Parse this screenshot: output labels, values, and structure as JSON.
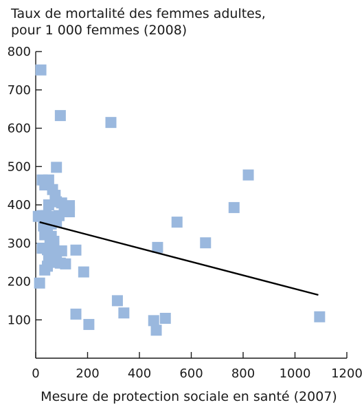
{
  "chart_data": {
    "type": "scatter",
    "title_lines": [
      "Taux de mortalité des femmes adultes,",
      "pour 1 000 femmes (2008)"
    ],
    "xlabel": "Mesure de protection sociale en santé (2007)",
    "ylabel": "",
    "xlim": [
      0,
      1200
    ],
    "ylim": [
      0,
      800
    ],
    "x_ticks": [
      0,
      200,
      400,
      600,
      800,
      1000,
      1200
    ],
    "y_ticks": [
      100,
      200,
      300,
      400,
      500,
      600,
      700,
      800
    ],
    "x_tick_labels": [
      "0",
      "200",
      "400",
      "600",
      "800",
      "1000",
      "1200"
    ],
    "y_tick_labels": [
      "100",
      "200",
      "300",
      "400",
      "500",
      "600",
      "700",
      "800"
    ],
    "grid": false,
    "colors": {
      "points": "#9ab8de",
      "trend_line": "#000000"
    },
    "points": [
      {
        "x": 20,
        "y": 752
      },
      {
        "x": 95,
        "y": 633
      },
      {
        "x": 290,
        "y": 615
      },
      {
        "x": 820,
        "y": 478
      },
      {
        "x": 765,
        "y": 393
      },
      {
        "x": 545,
        "y": 355
      },
      {
        "x": 655,
        "y": 301
      },
      {
        "x": 470,
        "y": 289
      },
      {
        "x": 1095,
        "y": 108
      },
      {
        "x": 500,
        "y": 104
      },
      {
        "x": 455,
        "y": 98
      },
      {
        "x": 465,
        "y": 73
      },
      {
        "x": 340,
        "y": 118
      },
      {
        "x": 315,
        "y": 150
      },
      {
        "x": 205,
        "y": 88
      },
      {
        "x": 155,
        "y": 115
      },
      {
        "x": 185,
        "y": 225
      },
      {
        "x": 155,
        "y": 282
      },
      {
        "x": 115,
        "y": 246
      },
      {
        "x": 95,
        "y": 248
      },
      {
        "x": 100,
        "y": 280
      },
      {
        "x": 80,
        "y": 498
      },
      {
        "x": 25,
        "y": 465
      },
      {
        "x": 50,
        "y": 465
      },
      {
        "x": 35,
        "y": 452
      },
      {
        "x": 65,
        "y": 440
      },
      {
        "x": 75,
        "y": 425
      },
      {
        "x": 80,
        "y": 408
      },
      {
        "x": 50,
        "y": 400
      },
      {
        "x": 100,
        "y": 405
      },
      {
        "x": 130,
        "y": 398
      },
      {
        "x": 130,
        "y": 382
      },
      {
        "x": 110,
        "y": 385
      },
      {
        "x": 90,
        "y": 372
      },
      {
        "x": 70,
        "y": 370
      },
      {
        "x": 55,
        "y": 368
      },
      {
        "x": 40,
        "y": 372
      },
      {
        "x": 25,
        "y": 372
      },
      {
        "x": 10,
        "y": 370
      },
      {
        "x": 80,
        "y": 355
      },
      {
        "x": 60,
        "y": 350
      },
      {
        "x": 30,
        "y": 345
      },
      {
        "x": 45,
        "y": 335
      },
      {
        "x": 35,
        "y": 322
      },
      {
        "x": 60,
        "y": 318
      },
      {
        "x": 70,
        "y": 305
      },
      {
        "x": 55,
        "y": 297
      },
      {
        "x": 25,
        "y": 287
      },
      {
        "x": 45,
        "y": 283
      },
      {
        "x": 60,
        "y": 275
      },
      {
        "x": 50,
        "y": 262
      },
      {
        "x": 60,
        "y": 250
      },
      {
        "x": 45,
        "y": 240
      },
      {
        "x": 35,
        "y": 230
      },
      {
        "x": 15,
        "y": 196
      },
      {
        "x": 80,
        "y": 270
      },
      {
        "x": 70,
        "y": 292
      }
    ],
    "trend_line": {
      "x": [
        15,
        1090
      ],
      "y": [
        355,
        165
      ]
    }
  }
}
